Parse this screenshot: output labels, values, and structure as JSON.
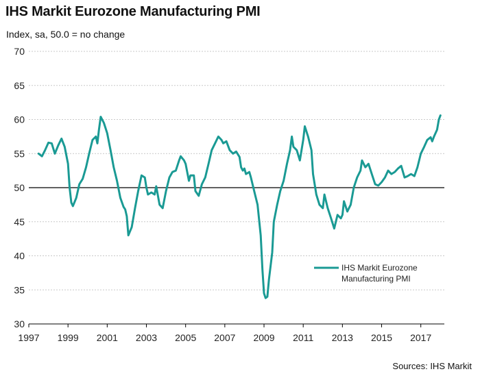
{
  "title": "IHS Markit Eurozone Manufacturing PMI",
  "subtitle": "Index, sa, 50.0 = no change",
  "source": "Sources: IHS Markit",
  "colors": {
    "series": "#1a9a94",
    "grid": "#c8c8c8",
    "reference": "#000000"
  },
  "chart_data": {
    "type": "line",
    "ylim": [
      30,
      70
    ],
    "yticks": [
      30,
      35,
      40,
      45,
      50,
      55,
      60,
      65,
      70
    ],
    "xlim": [
      1997,
      2018.2
    ],
    "xticks": [
      1997,
      1999,
      2001,
      2003,
      2005,
      2007,
      2009,
      2011,
      2013,
      2015,
      2017
    ],
    "reference_line": 50,
    "grid": "horizontal dotted",
    "legend_position": "bottom-right",
    "legend_lines": [
      "IHS Markit Eurozone",
      "Manufacturing PMI"
    ],
    "series": [
      {
        "name": "IHS Markit Eurozone Manufacturing PMI",
        "points": [
          [
            1997.5,
            55.0
          ],
          [
            1997.67,
            54.6
          ],
          [
            1997.83,
            55.5
          ],
          [
            1998.0,
            56.6
          ],
          [
            1998.17,
            56.5
          ],
          [
            1998.33,
            55.0
          ],
          [
            1998.5,
            56.2
          ],
          [
            1998.67,
            57.2
          ],
          [
            1998.83,
            56.0
          ],
          [
            1999.0,
            53.5
          ],
          [
            1999.08,
            50.0
          ],
          [
            1999.17,
            47.8
          ],
          [
            1999.25,
            47.3
          ],
          [
            1999.42,
            48.5
          ],
          [
            1999.58,
            50.5
          ],
          [
            1999.75,
            51.3
          ],
          [
            1999.92,
            53.0
          ],
          [
            2000.08,
            55.0
          ],
          [
            2000.25,
            57.0
          ],
          [
            2000.42,
            57.5
          ],
          [
            2000.5,
            56.5
          ],
          [
            2000.58,
            58.5
          ],
          [
            2000.67,
            60.4
          ],
          [
            2000.83,
            59.5
          ],
          [
            2001.0,
            58.0
          ],
          [
            2001.17,
            55.5
          ],
          [
            2001.33,
            53.0
          ],
          [
            2001.5,
            51.0
          ],
          [
            2001.67,
            48.5
          ],
          [
            2001.83,
            47.2
          ],
          [
            2001.92,
            46.8
          ],
          [
            2002.0,
            45.8
          ],
          [
            2002.08,
            43.0
          ],
          [
            2002.25,
            44.2
          ],
          [
            2002.42,
            47.0
          ],
          [
            2002.58,
            49.5
          ],
          [
            2002.75,
            51.8
          ],
          [
            2002.92,
            51.5
          ],
          [
            2003.0,
            50.0
          ],
          [
            2003.08,
            49.0
          ],
          [
            2003.25,
            49.3
          ],
          [
            2003.42,
            49.0
          ],
          [
            2003.5,
            50.2
          ],
          [
            2003.67,
            47.5
          ],
          [
            2003.83,
            47.0
          ],
          [
            2004.0,
            49.5
          ],
          [
            2004.17,
            51.5
          ],
          [
            2004.33,
            52.3
          ],
          [
            2004.5,
            52.5
          ],
          [
            2004.67,
            54.0
          ],
          [
            2004.75,
            54.6
          ],
          [
            2004.92,
            54.0
          ],
          [
            2005.0,
            53.5
          ],
          [
            2005.17,
            51.0
          ],
          [
            2005.25,
            51.8
          ],
          [
            2005.42,
            51.8
          ],
          [
            2005.5,
            49.5
          ],
          [
            2005.67,
            48.8
          ],
          [
            2005.83,
            50.5
          ],
          [
            2006.0,
            51.5
          ],
          [
            2006.17,
            53.5
          ],
          [
            2006.33,
            55.5
          ],
          [
            2006.5,
            56.5
          ],
          [
            2006.67,
            57.5
          ],
          [
            2006.83,
            57.0
          ],
          [
            2006.92,
            56.5
          ],
          [
            2007.08,
            56.8
          ],
          [
            2007.25,
            55.5
          ],
          [
            2007.42,
            55.0
          ],
          [
            2007.58,
            55.3
          ],
          [
            2007.75,
            54.5
          ],
          [
            2007.83,
            53.0
          ],
          [
            2007.92,
            52.5
          ],
          [
            2008.0,
            52.8
          ],
          [
            2008.08,
            52.0
          ],
          [
            2008.25,
            52.3
          ],
          [
            2008.33,
            51.5
          ],
          [
            2008.5,
            49.5
          ],
          [
            2008.67,
            47.5
          ],
          [
            2008.83,
            43.0
          ],
          [
            2008.92,
            38.0
          ],
          [
            2009.0,
            34.5
          ],
          [
            2009.08,
            33.8
          ],
          [
            2009.17,
            34.0
          ],
          [
            2009.25,
            36.5
          ],
          [
            2009.42,
            40.5
          ],
          [
            2009.5,
            45.0
          ],
          [
            2009.67,
            47.5
          ],
          [
            2009.83,
            49.5
          ],
          [
            2010.0,
            51.0
          ],
          [
            2010.17,
            53.5
          ],
          [
            2010.33,
            55.5
          ],
          [
            2010.42,
            57.5
          ],
          [
            2010.5,
            56.0
          ],
          [
            2010.67,
            55.5
          ],
          [
            2010.83,
            54.0
          ],
          [
            2011.0,
            57.0
          ],
          [
            2011.08,
            59.0
          ],
          [
            2011.25,
            57.5
          ],
          [
            2011.42,
            55.5
          ],
          [
            2011.5,
            52.0
          ],
          [
            2011.67,
            49.0
          ],
          [
            2011.83,
            47.5
          ],
          [
            2012.0,
            47.0
          ],
          [
            2012.08,
            49.0
          ],
          [
            2012.25,
            47.0
          ],
          [
            2012.42,
            45.5
          ],
          [
            2012.58,
            44.0
          ],
          [
            2012.75,
            46.0
          ],
          [
            2012.92,
            45.5
          ],
          [
            2013.0,
            46.0
          ],
          [
            2013.08,
            48.0
          ],
          [
            2013.25,
            46.5
          ],
          [
            2013.42,
            47.5
          ],
          [
            2013.58,
            50.0
          ],
          [
            2013.75,
            51.5
          ],
          [
            2013.92,
            52.5
          ],
          [
            2014.0,
            54.0
          ],
          [
            2014.17,
            53.0
          ],
          [
            2014.33,
            53.5
          ],
          [
            2014.5,
            52.0
          ],
          [
            2014.67,
            50.5
          ],
          [
            2014.83,
            50.3
          ],
          [
            2015.0,
            50.8
          ],
          [
            2015.17,
            51.5
          ],
          [
            2015.33,
            52.5
          ],
          [
            2015.5,
            52.0
          ],
          [
            2015.67,
            52.3
          ],
          [
            2015.83,
            52.8
          ],
          [
            2016.0,
            53.2
          ],
          [
            2016.17,
            51.5
          ],
          [
            2016.33,
            51.7
          ],
          [
            2016.5,
            52.0
          ],
          [
            2016.67,
            51.7
          ],
          [
            2016.83,
            53.0
          ],
          [
            2017.0,
            55.0
          ],
          [
            2017.17,
            56.0
          ],
          [
            2017.33,
            57.0
          ],
          [
            2017.5,
            57.4
          ],
          [
            2017.58,
            56.8
          ],
          [
            2017.67,
            57.5
          ],
          [
            2017.83,
            58.5
          ],
          [
            2017.92,
            60.0
          ],
          [
            2018.0,
            60.6
          ]
        ]
      }
    ]
  }
}
